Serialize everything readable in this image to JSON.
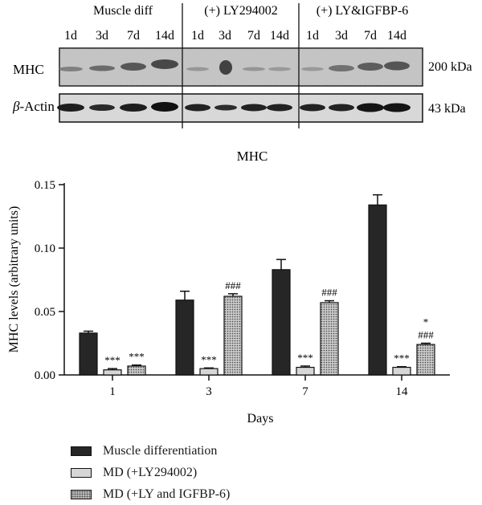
{
  "blot": {
    "groups": [
      "Muscle diff",
      "(+) LY294002",
      "(+) LY&IGFBP-6"
    ],
    "lane_labels": [
      "1d",
      "3d",
      "7d",
      "14d"
    ],
    "rows": [
      {
        "label": "MHC",
        "size": "200 kDa"
      },
      {
        "label_prefix": "β",
        "label_rest": "-Actin",
        "size": "43 kDa"
      }
    ]
  },
  "chart_data": {
    "type": "bar",
    "title": "MHC",
    "xlabel": "Days",
    "ylabel": "MHC levels (arbitrary units)",
    "categories": [
      "1",
      "3",
      "7",
      "14"
    ],
    "ylim": [
      0,
      0.15
    ],
    "yticks": [
      0.0,
      0.05,
      0.1,
      0.15
    ],
    "ytick_labels": [
      "0.00",
      "0.05",
      "0.10",
      "0.15"
    ],
    "series": [
      {
        "name": "Muscle differentiation",
        "pattern": "solid",
        "color": "#262626",
        "values": [
          0.033,
          0.059,
          0.083,
          0.134
        ],
        "errors": [
          0.0015,
          0.007,
          0.008,
          0.008
        ],
        "annotations": [
          "",
          "",
          "",
          ""
        ]
      },
      {
        "name": "MD (+LY294002)",
        "pattern": "light",
        "color": "#d6d6d6",
        "values": [
          0.004,
          0.005,
          0.006,
          0.006
        ],
        "errors": [
          0.001,
          0.0005,
          0.001,
          0.0005
        ],
        "annotations": [
          "***",
          "***",
          "***",
          "***"
        ]
      },
      {
        "name": "MD (+LY and IGFBP-6)",
        "pattern": "hatch",
        "color": "#bdbdbd",
        "values": [
          0.007,
          0.062,
          0.057,
          0.024
        ],
        "errors": [
          0.0008,
          0.002,
          0.0015,
          0.001
        ],
        "annotations": [
          "***",
          "###",
          "###",
          "*\n###"
        ]
      }
    ]
  }
}
